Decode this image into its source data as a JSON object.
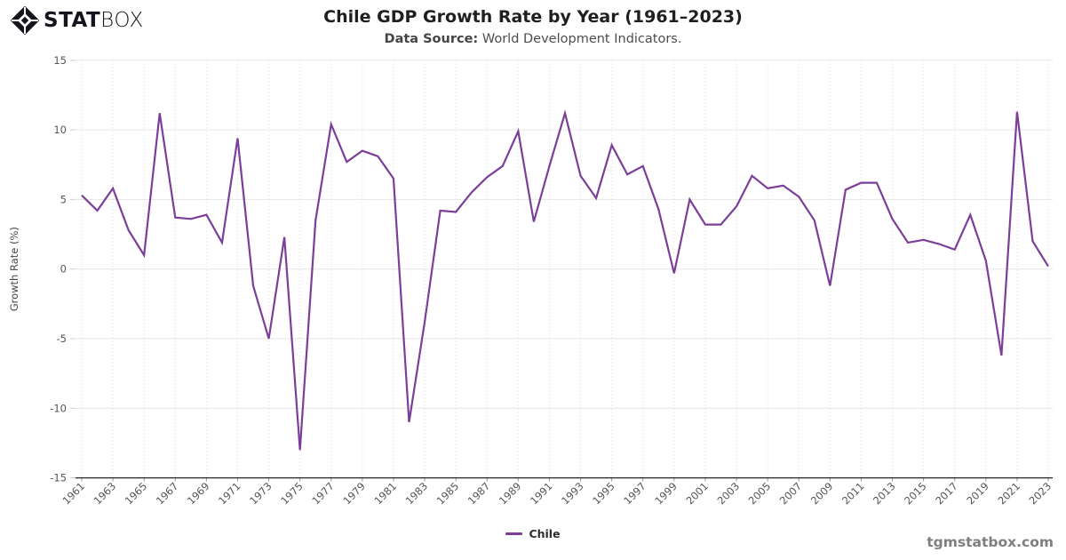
{
  "brand": {
    "logo_stat": "STAT",
    "logo_box": "BOX",
    "logo_color": "#15151d"
  },
  "header": {
    "title": "Chile GDP Growth Rate by Year (1961–2023)",
    "subtitle_label": "Data Source:",
    "subtitle_text": " World Development Indicators."
  },
  "legend": {
    "label": "Chile"
  },
  "watermark": "tgmstatbox.com",
  "colors": {
    "line": "#7b3e99",
    "grid_h": "#e6e6e6",
    "grid_v": "#d9d9d9",
    "axis": "#262626",
    "tick_text": "#555555"
  },
  "chart_data": {
    "type": "line",
    "title": "Chile GDP Growth Rate by Year (1961–2023)",
    "xlabel": "",
    "ylabel": "Growth Rate (%)",
    "ylim": [
      -15,
      15
    ],
    "yticks": [
      15,
      10,
      5,
      0,
      -5,
      -10,
      -15
    ],
    "xtick_every": 2,
    "grid": {
      "horizontal": "solid",
      "vertical": "dotted"
    },
    "legend_position": "bottom-center",
    "x": [
      1961,
      1962,
      1963,
      1964,
      1965,
      1966,
      1967,
      1968,
      1969,
      1970,
      1971,
      1972,
      1973,
      1974,
      1975,
      1976,
      1977,
      1978,
      1979,
      1980,
      1981,
      1982,
      1983,
      1984,
      1985,
      1986,
      1987,
      1988,
      1989,
      1990,
      1991,
      1992,
      1993,
      1994,
      1995,
      1996,
      1997,
      1998,
      1999,
      2000,
      2001,
      2002,
      2003,
      2004,
      2005,
      2006,
      2007,
      2008,
      2009,
      2010,
      2011,
      2012,
      2013,
      2014,
      2015,
      2016,
      2017,
      2018,
      2019,
      2020,
      2021,
      2022,
      2023
    ],
    "series": [
      {
        "name": "Chile",
        "color": "#7b3e99",
        "values": [
          5.3,
          4.2,
          5.8,
          2.8,
          1.0,
          11.2,
          3.7,
          3.6,
          3.9,
          1.9,
          9.4,
          -1.2,
          -5.0,
          2.3,
          -13.0,
          3.5,
          10.4,
          7.7,
          8.5,
          8.1,
          6.5,
          -11.0,
          -3.8,
          4.2,
          4.1,
          5.5,
          6.6,
          7.4,
          9.9,
          3.4,
          7.4,
          11.2,
          6.7,
          5.1,
          8.9,
          6.8,
          7.4,
          4.3,
          -0.3,
          5.0,
          3.2,
          3.2,
          4.5,
          6.7,
          5.8,
          6.0,
          5.2,
          3.5,
          -1.2,
          5.7,
          6.2,
          6.2,
          3.6,
          1.9,
          2.1,
          1.8,
          1.4,
          3.9,
          0.6,
          -6.2,
          11.3,
          2.0,
          0.2
        ]
      }
    ]
  }
}
